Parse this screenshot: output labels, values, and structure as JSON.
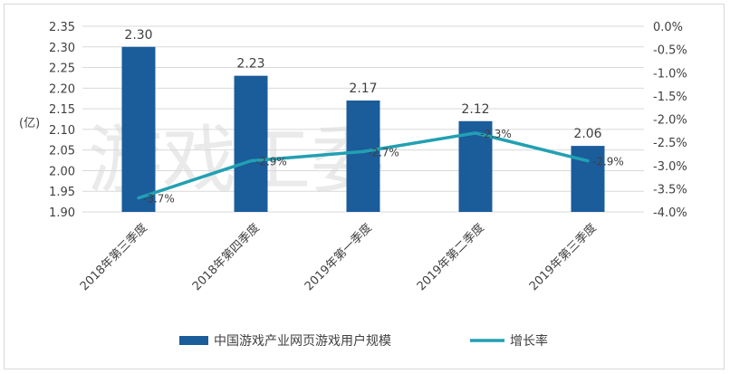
{
  "chart_data": {
    "type": "bar",
    "title": "",
    "categories": [
      "2018年第三季度",
      "2018年第四季度",
      "2019年第一季度",
      "2019年第二季度",
      "2019年第三季度"
    ],
    "series": [
      {
        "name": "中国游戏产业网页游戏用户规模",
        "type": "bar",
        "axis": "left",
        "color": "#1b5c9b",
        "values": [
          2.3,
          2.23,
          2.17,
          2.12,
          2.06
        ],
        "data_labels": [
          "2.30",
          "2.23",
          "2.17",
          "2.12",
          "2.06"
        ]
      },
      {
        "name": "增长率",
        "type": "line",
        "axis": "right",
        "color": "#22a0b3",
        "values": [
          -3.7,
          -2.9,
          -2.7,
          -2.3,
          -2.9
        ],
        "data_labels": [
          "-3.7%",
          "-2.9%",
          "-2.7%",
          "-2.3%",
          "-2.9%"
        ]
      }
    ],
    "ylabel": "(亿)",
    "ylim": [
      1.9,
      2.35
    ],
    "y_ticks": [
      "1.90",
      "1.95",
      "2.00",
      "2.05",
      "2.10",
      "2.15",
      "2.20",
      "2.25",
      "2.30",
      "2.35"
    ],
    "y2lim": [
      -4.0,
      0.0
    ],
    "y2_ticks": [
      "0.0%",
      "-0.5%",
      "-1.0%",
      "-1.5%",
      "-2.0%",
      "-2.5%",
      "-3.0%",
      "-3.5%",
      "-4.0%"
    ],
    "grid": true,
    "legend_position": "bottom"
  },
  "watermark": "游戏工委"
}
